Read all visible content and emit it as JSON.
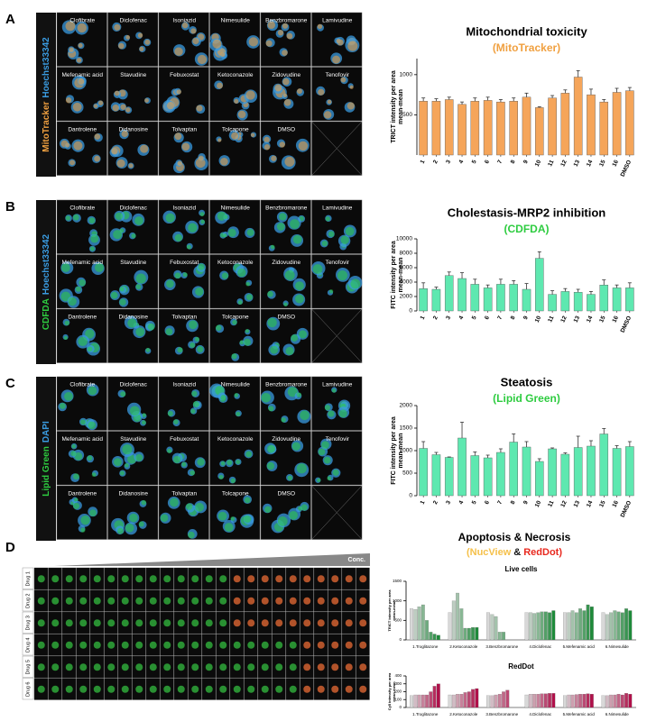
{
  "figure": {
    "drugs": [
      "Clofibrate",
      "Diclofenac",
      "Isoniazid",
      "Nimesulide",
      "Benzbromarone",
      "Lamivudine",
      "Mefenamic acid",
      "Stavudine",
      "Febuxostat",
      "Ketoconazole",
      "Zidovudine",
      "Tenofovir",
      "Dantrolene",
      "Didanosine",
      "Tolvaptan",
      "Tolcapone",
      "DMSO"
    ],
    "panels": [
      {
        "letter": "A",
        "stains": [
          {
            "text": "MitoTracker",
            "color": "#f0a040"
          },
          {
            "text": "Hoechst33342",
            "color": "#3a9be0"
          }
        ]
      },
      {
        "letter": "B",
        "stains": [
          {
            "text": "CDFDA",
            "color": "#2ecc40"
          },
          {
            "text": "Hoechst33342",
            "color": "#3a9be0"
          }
        ]
      },
      {
        "letter": "C",
        "stains": [
          {
            "text": "Lipid Green",
            "color": "#2ecc40"
          },
          {
            "text": "DAPI",
            "color": "#3a9be0"
          }
        ]
      },
      {
        "letter": "D",
        "conc": "Conc.",
        "rows": [
          "Drug 1",
          "Drug 2",
          "Drug 3",
          "Drug 4",
          "Drug 5",
          "Drug 6"
        ],
        "title": "Apoptosis & Necrosis",
        "subtitle": [
          {
            "text": "(NucView",
            "color": "#f5c04a"
          },
          {
            "text": "&",
            "color": "#111111"
          },
          {
            "text": "RedDot)",
            "color": "#e8281e"
          }
        ]
      }
    ]
  },
  "chart_data": [
    {
      "type": "bar",
      "title": "Mitochondrial toxicity",
      "subtitle": [
        {
          "text": "(MitoTracker)",
          "color": "#f0a040"
        }
      ],
      "ylabel": [
        "TRICT intensity per area",
        "mean-mean"
      ],
      "categories": [
        "1",
        "2",
        "3",
        "4",
        "5",
        "6",
        "7",
        "8",
        "9",
        "10",
        "11",
        "12",
        "13",
        "14",
        "15",
        "16",
        "DMSO"
      ],
      "values": [
        670,
        670,
        690,
        630,
        670,
        680,
        660,
        670,
        720,
        590,
        710,
        770,
        970,
        750,
        660,
        780,
        800
      ],
      "errors": [
        40,
        30,
        30,
        30,
        40,
        40,
        30,
        40,
        50,
        10,
        30,
        40,
        80,
        70,
        30,
        50,
        40
      ],
      "color": "#f5a55a",
      "ylim": [
        0,
        1200
      ],
      "yticks": [
        500,
        1000
      ]
    },
    {
      "type": "bar",
      "title": "Cholestasis-MRP2 inhibition",
      "subtitle": [
        {
          "text": "(CDFDA)",
          "color": "#2ecc40"
        }
      ],
      "ylabel": [
        "FITC intensity per area",
        "mean-mean"
      ],
      "categories": [
        "1",
        "2",
        "3",
        "4",
        "5",
        "6",
        "7",
        "8",
        "9",
        "10",
        "11",
        "12",
        "13",
        "14",
        "15",
        "16",
        "DMSO"
      ],
      "values": [
        3100,
        3000,
        4900,
        4500,
        3700,
        3200,
        3700,
        3700,
        3000,
        7300,
        2300,
        2700,
        2600,
        2300,
        3600,
        3200,
        3200
      ],
      "errors": [
        800,
        300,
        500,
        800,
        700,
        400,
        700,
        500,
        800,
        900,
        500,
        400,
        400,
        400,
        700,
        400,
        700
      ],
      "color": "#5ee8b0",
      "ylim": [
        0,
        10000
      ],
      "yticks": [
        0,
        2000,
        4000,
        6000,
        8000,
        10000
      ]
    },
    {
      "type": "bar",
      "title": "Steatosis",
      "subtitle": [
        {
          "text": "(Lipid Green)",
          "color": "#2ecc40"
        }
      ],
      "ylabel": [
        "FITC intensity per area",
        "mean-mean"
      ],
      "categories": [
        "1",
        "2",
        "3",
        "4",
        "5",
        "6",
        "7",
        "8",
        "9",
        "10",
        "11",
        "12",
        "13",
        "14",
        "15",
        "16",
        "DMSO"
      ],
      "values": [
        1050,
        910,
        850,
        1280,
        890,
        840,
        960,
        1190,
        1080,
        760,
        1040,
        920,
        1070,
        1100,
        1370,
        1050,
        1090
      ],
      "errors": [
        150,
        50,
        10,
        350,
        80,
        60,
        80,
        180,
        120,
        60,
        20,
        30,
        250,
        120,
        120,
        60,
        110
      ],
      "color": "#5ee8b0",
      "ylim": [
        0,
        2000
      ],
      "yticks": [
        0,
        500,
        1000,
        1500,
        2000
      ]
    },
    {
      "type": "grouped_bar",
      "title": "Live cells",
      "ylabel": [
        "TRICT intensity per area",
        "mean-mean"
      ],
      "categories": [
        "1.Troglitazone",
        "2.Ketoconazole",
        "3.Benzbromarone",
        "4.Diclofenac",
        "5.Mefenamic acid",
        "6.Nimesulide"
      ],
      "values": [
        [
          800,
          780,
          850,
          900,
          500,
          200,
          150,
          120
        ],
        [
          700,
          1000,
          1200,
          800,
          300,
          300,
          320,
          320
        ],
        [
          700,
          650,
          600,
          200,
          200
        ],
        [
          700,
          700,
          680,
          700,
          720,
          720,
          700,
          750
        ],
        [
          700,
          700,
          750,
          700,
          800,
          750,
          900,
          850
        ],
        [
          700,
          650,
          700,
          750,
          720,
          700,
          800,
          750
        ]
      ],
      "color_ramp": [
        "#d8d8d8",
        "#1e8a3a"
      ],
      "ylim": [
        0,
        1500
      ],
      "yticks": [
        0,
        500,
        1000,
        1500
      ]
    },
    {
      "type": "grouped_bar",
      "title": "RedDot",
      "ylabel": [
        "Cy5 intensity per area",
        "mean-mean"
      ],
      "categories": [
        "1.Troglitazone",
        "2.Ketoconazole",
        "3.Benzbromarone",
        "4.Diclofenac",
        "5.Mefenamic acid",
        "6.Nimesulide"
      ],
      "values": [
        [
          150,
          160,
          160,
          160,
          160,
          200,
          270,
          300
        ],
        [
          160,
          160,
          170,
          170,
          190,
          200,
          230,
          240
        ],
        [
          150,
          150,
          160,
          170,
          200,
          220
        ],
        [
          160,
          170,
          170,
          170,
          175,
          175,
          180,
          180
        ],
        [
          150,
          160,
          160,
          165,
          170,
          170,
          175,
          170
        ],
        [
          150,
          150,
          160,
          160,
          170,
          160,
          180,
          170
        ]
      ],
      "color_ramp": [
        "#d8d8d8",
        "#b0104a"
      ],
      "ylim": [
        0,
        400
      ],
      "yticks": [
        0,
        100,
        200,
        300,
        400
      ]
    }
  ]
}
